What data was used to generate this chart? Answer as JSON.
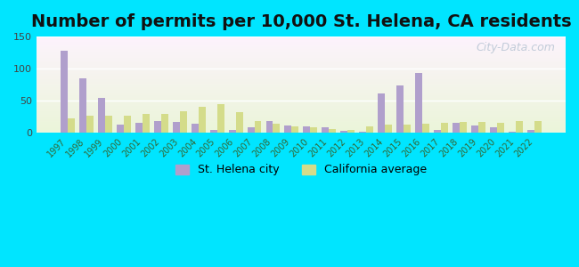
{
  "title": "Number of permits per 10,000 St. Helena, CA residents",
  "years": [
    1997,
    1998,
    1999,
    2000,
    2001,
    2002,
    2003,
    2004,
    2005,
    2006,
    2007,
    2008,
    2009,
    2010,
    2011,
    2012,
    2013,
    2014,
    2015,
    2016,
    2017,
    2018,
    2019,
    2020,
    2021,
    2022
  ],
  "st_helena": [
    128,
    85,
    54,
    13,
    15,
    18,
    17,
    14,
    5,
    5,
    9,
    19,
    12,
    10,
    9,
    3,
    1,
    62,
    74,
    93,
    4,
    16,
    11,
    8,
    2,
    5
  ],
  "ca_avg": [
    23,
    26,
    27,
    27,
    30,
    30,
    33,
    40,
    44,
    32,
    19,
    14,
    10,
    8,
    6,
    5,
    10,
    13,
    13,
    14,
    15,
    17,
    17,
    16,
    18,
    19
  ],
  "city_color": "#b09fcc",
  "ca_color": "#d4dc8a",
  "ylim": [
    0,
    150
  ],
  "yticks": [
    0,
    50,
    100,
    150
  ],
  "outer_bg": "#00e5ff",
  "title_fontsize": 14,
  "watermark": "City-Data.com",
  "legend_city": "St. Helena city",
  "legend_ca": "California average"
}
